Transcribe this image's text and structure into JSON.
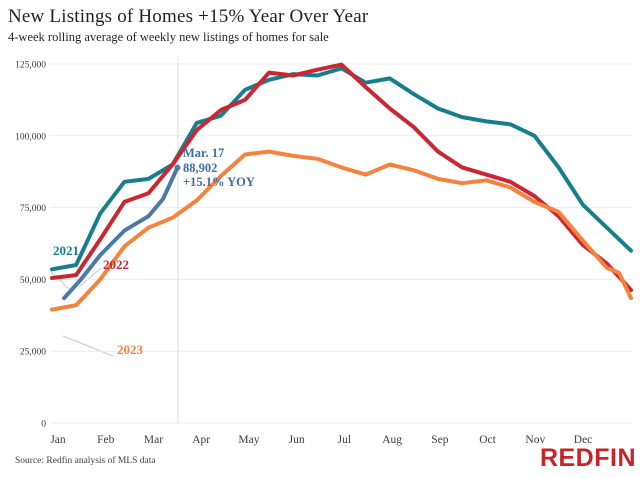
{
  "header": {
    "title": "New Listings of Homes +15% Year Over Year",
    "subtitle": "4-week rolling average of weekly new listings of homes for sale"
  },
  "chart_data": {
    "type": "line",
    "title": "New Listings of Homes +15% Year Over Year",
    "subtitle": "4-week rolling average of weekly new listings of homes for sale",
    "xlabel": "",
    "ylabel": "",
    "x_unit": "months (0 = Jan 1, 12 = Dec 31)",
    "x_tick_labels": [
      "Jan",
      "Feb",
      "Mar",
      "Apr",
      "May",
      "Jun",
      "Jul",
      "Aug",
      "Sep",
      "Oct",
      "Nov",
      "Dec"
    ],
    "y_tick_values": [
      0,
      25000,
      50000,
      75000,
      100000,
      125000
    ],
    "y_tick_labels": [
      "0",
      "25,000",
      "50,000",
      "75,000",
      "100,000",
      "125,000"
    ],
    "ylim": [
      0,
      127500
    ],
    "grid": "horizontal",
    "legend_position": "inline-labels",
    "reference_line_month": 2.61,
    "series": [
      {
        "id": "2021",
        "label": "2021",
        "color": "#177E8E",
        "x": [
          0,
          0.5,
          1,
          1.5,
          2,
          2.5,
          3,
          3.5,
          4,
          4.5,
          5,
          5.5,
          6,
          6.5,
          7,
          7.5,
          8,
          8.5,
          9,
          9.5,
          10,
          10.5,
          11,
          11.5,
          12
        ],
        "values": [
          53500,
          55000,
          73000,
          84000,
          85000,
          90000,
          104500,
          107000,
          116000,
          119500,
          121500,
          121000,
          123500,
          118500,
          120000,
          114500,
          109500,
          106500,
          105000,
          104000,
          100000,
          89000,
          76000,
          68000,
          60000
        ]
      },
      {
        "id": "2022",
        "label": "2022",
        "color": "#CB2631",
        "x": [
          0,
          0.5,
          1,
          1.5,
          2,
          2.5,
          3,
          3.5,
          4,
          4.5,
          5,
          5.5,
          6,
          6.5,
          7,
          7.5,
          8,
          8.5,
          9,
          9.5,
          10,
          10.5,
          11,
          11.5,
          12
        ],
        "values": [
          50500,
          51500,
          64000,
          77000,
          80000,
          90000,
          102000,
          109000,
          112500,
          122000,
          121000,
          123000,
          124800,
          117000,
          109500,
          103000,
          94500,
          89000,
          86500,
          84000,
          79000,
          72000,
          62000,
          55500,
          46300
        ]
      },
      {
        "id": "2023",
        "label": "2023",
        "color": "#F5823D",
        "x": [
          0,
          0.5,
          1,
          1.5,
          2,
          2.5,
          3,
          3.5,
          4,
          4.5,
          5,
          5.5,
          6,
          6.5,
          7,
          7.5,
          8,
          8.5,
          9,
          9.5,
          10,
          10.5,
          11,
          11.5,
          11.75,
          12
        ],
        "values": [
          39500,
          41000,
          50000,
          61500,
          68000,
          71500,
          77500,
          86000,
          93500,
          94500,
          93000,
          92000,
          89000,
          86500,
          90000,
          88000,
          85000,
          83500,
          84500,
          82000,
          77000,
          73500,
          63500,
          54000,
          52300,
          43500
        ]
      },
      {
        "id": "current-year",
        "label": "",
        "color": "#4A7AA7",
        "end_dot": true,
        "x": [
          0.25,
          0.6,
          1,
          1.5,
          2,
          2.3,
          2.6
        ],
        "values": [
          43500,
          50000,
          58500,
          67000,
          72000,
          78000,
          88902
        ]
      }
    ],
    "annotation": {
      "line1": "Mar. 17",
      "line2": "88,902",
      "line3": "+15.1% YOY",
      "color": "#3E6DA0"
    }
  },
  "footer": {
    "source": "Source: Redfin analysis of MLS data",
    "logo_text": "REDFIN",
    "logo_color": "#C52428"
  }
}
